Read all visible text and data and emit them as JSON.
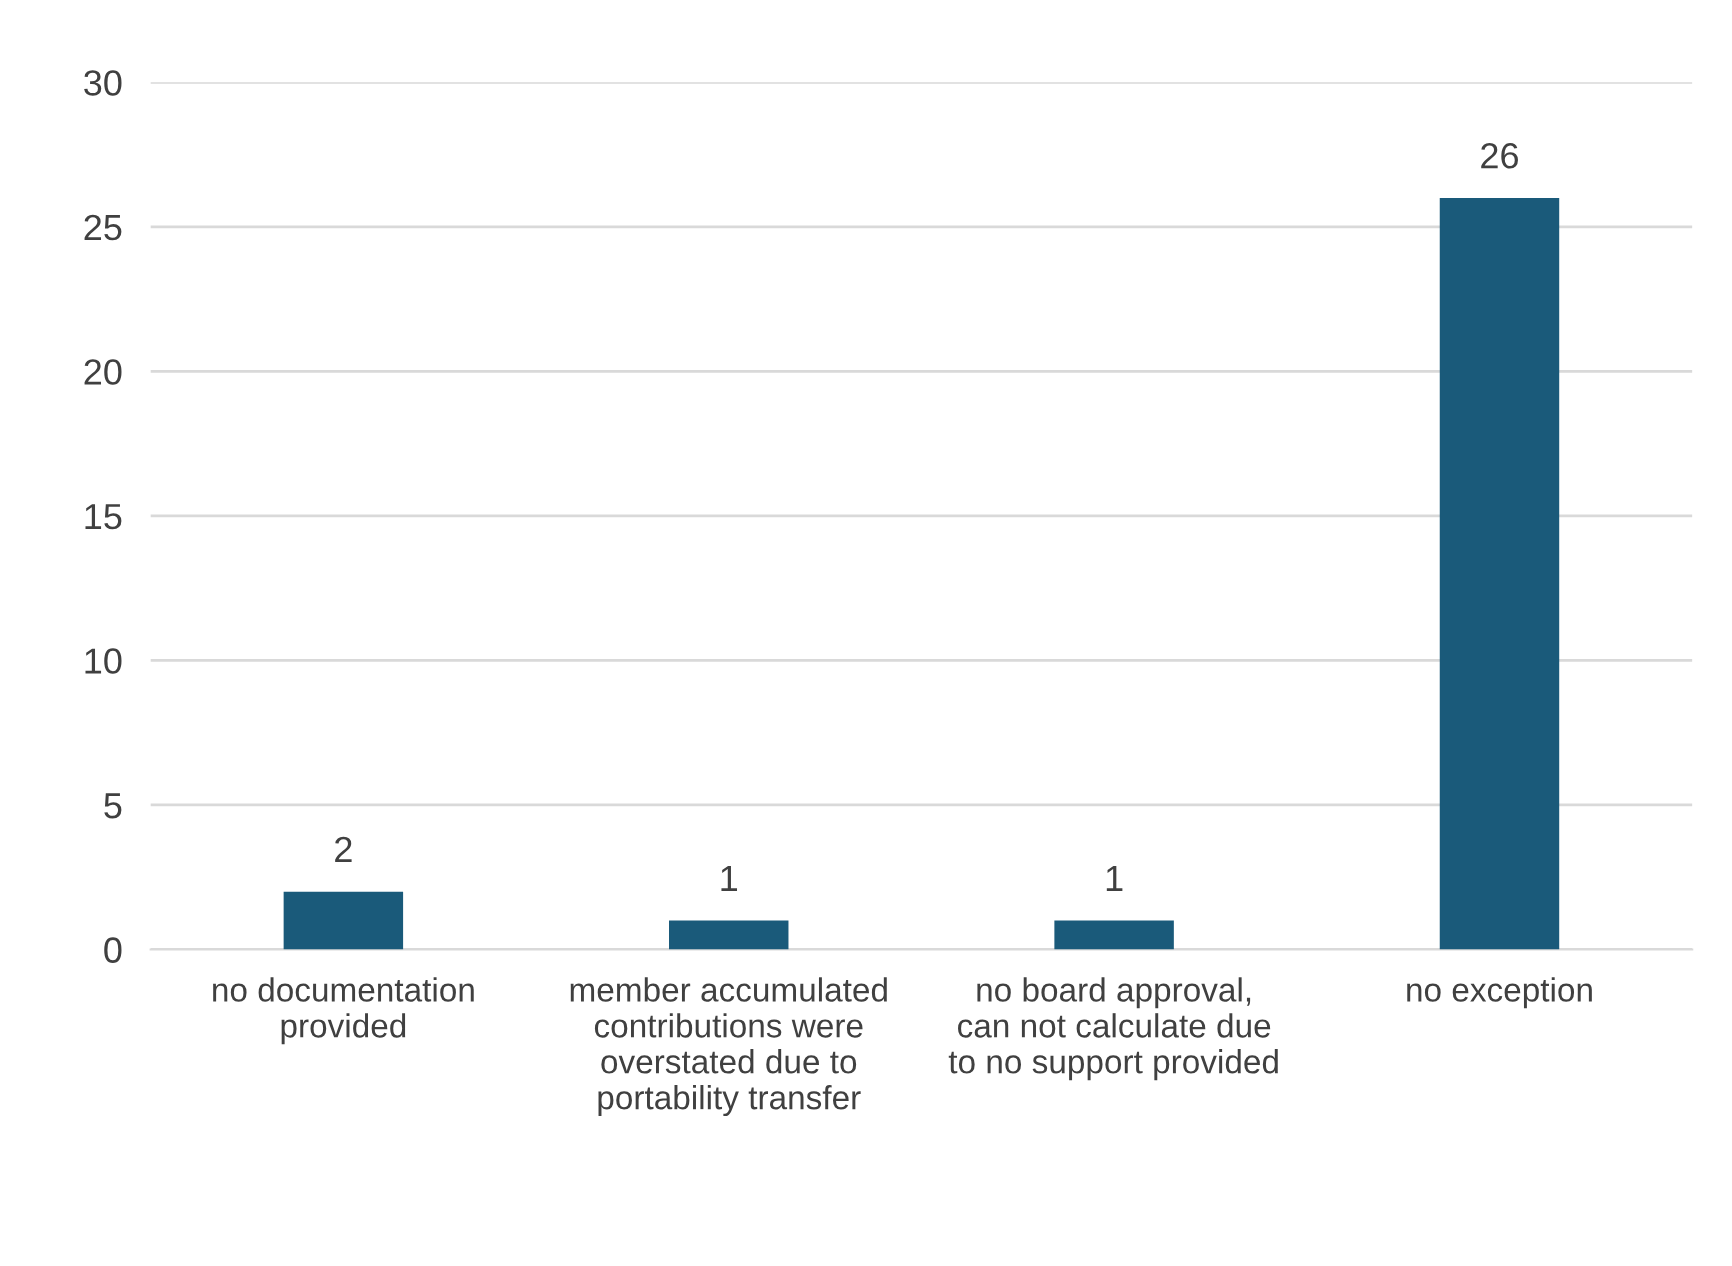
{
  "chart_data": {
    "type": "bar",
    "categories": [
      "no documentation\nprovided",
      "member accumulated\ncontributions were\noverstated due to\nportability transfer",
      "no board approval,\ncan not calculate due\nto no support provided",
      "no exception"
    ],
    "values": [
      2,
      1,
      1,
      26
    ],
    "color": "#1a5a7a",
    "ylim": [
      0,
      30
    ],
    "yticks": [
      0,
      5,
      10,
      15,
      20,
      25,
      30
    ],
    "grid": "y",
    "data_labels": true
  }
}
